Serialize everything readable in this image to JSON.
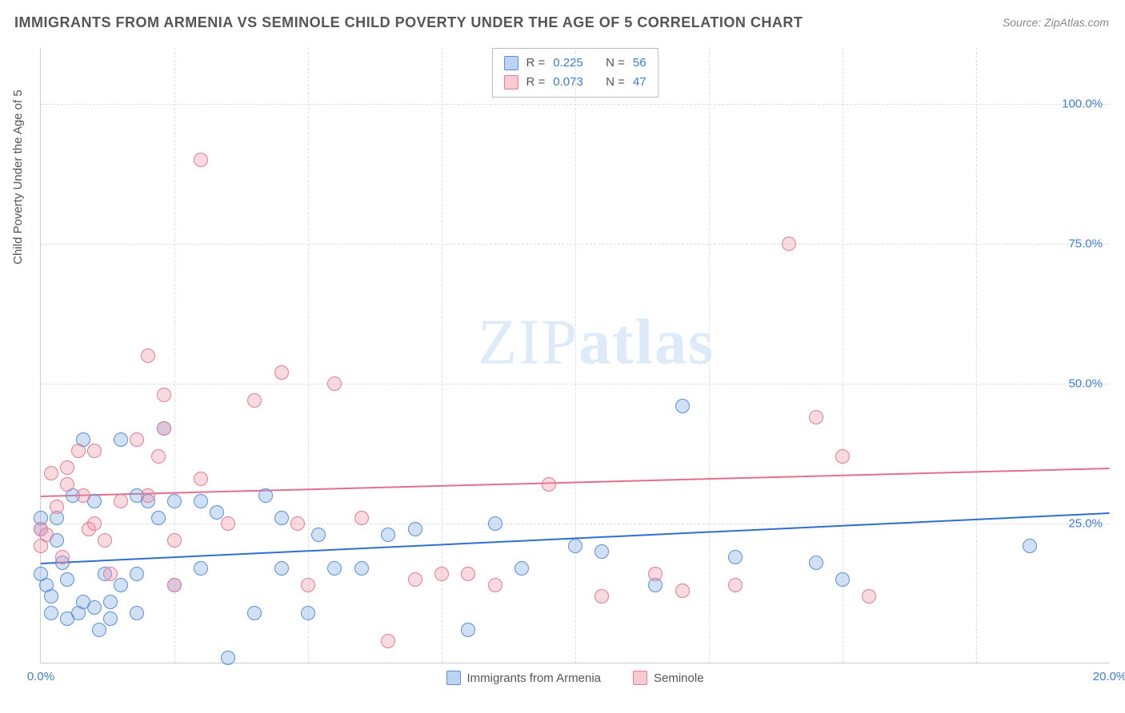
{
  "title": "IMMIGRANTS FROM ARMENIA VS SEMINOLE CHILD POVERTY UNDER THE AGE OF 5 CORRELATION CHART",
  "source": "Source: ZipAtlas.com",
  "y_axis_label": "Child Poverty Under the Age of 5",
  "watermark_thin": "ZIP",
  "watermark_bold": "atlas",
  "chart": {
    "type": "scatter",
    "xlim": [
      0,
      20
    ],
    "ylim": [
      0,
      110
    ],
    "x_ticks": [
      0,
      20
    ],
    "x_tick_labels": [
      "0.0%",
      "20.0%"
    ],
    "y_ticks": [
      25,
      50,
      75,
      100
    ],
    "y_tick_labels": [
      "25.0%",
      "50.0%",
      "75.0%",
      "100.0%"
    ],
    "x_minor_ticks": [
      2.5,
      5,
      7.5,
      10,
      12.5,
      15,
      17.5
    ],
    "background_color": "#ffffff",
    "grid_color": "#dddddd",
    "marker_radius": 9,
    "series": [
      {
        "name": "Immigrants from Armenia",
        "color_fill": "rgba(120,170,230,0.35)",
        "color_border": "#5a8fd6",
        "trend_color": "#2e6fd0",
        "R": "0.225",
        "N": "56",
        "trend": {
          "x1": 0,
          "y1": 18,
          "x2": 20,
          "y2": 27
        },
        "points": [
          [
            0.0,
            16
          ],
          [
            0.0,
            24
          ],
          [
            0.0,
            26
          ],
          [
            0.1,
            14
          ],
          [
            0.2,
            12
          ],
          [
            0.2,
            9
          ],
          [
            0.3,
            22
          ],
          [
            0.3,
            26
          ],
          [
            0.4,
            18
          ],
          [
            0.5,
            15
          ],
          [
            0.5,
            8
          ],
          [
            0.6,
            30
          ],
          [
            0.7,
            9
          ],
          [
            0.8,
            40
          ],
          [
            0.8,
            11
          ],
          [
            1.0,
            29
          ],
          [
            1.0,
            10
          ],
          [
            1.1,
            6
          ],
          [
            1.2,
            16
          ],
          [
            1.3,
            11
          ],
          [
            1.3,
            8
          ],
          [
            1.5,
            40
          ],
          [
            1.5,
            14
          ],
          [
            1.8,
            16
          ],
          [
            1.8,
            9
          ],
          [
            1.8,
            30
          ],
          [
            2.0,
            29
          ],
          [
            2.2,
            26
          ],
          [
            2.3,
            42
          ],
          [
            2.5,
            29
          ],
          [
            2.5,
            14
          ],
          [
            3.0,
            17
          ],
          [
            3.0,
            29
          ],
          [
            3.3,
            27
          ],
          [
            3.5,
            1
          ],
          [
            4.0,
            9
          ],
          [
            4.2,
            30
          ],
          [
            4.5,
            17
          ],
          [
            4.5,
            26
          ],
          [
            5.0,
            9
          ],
          [
            5.2,
            23
          ],
          [
            5.5,
            17
          ],
          [
            6.0,
            17
          ],
          [
            6.5,
            23
          ],
          [
            7.0,
            24
          ],
          [
            8.0,
            6
          ],
          [
            8.5,
            25
          ],
          [
            9.0,
            17
          ],
          [
            10.0,
            21
          ],
          [
            10.5,
            20
          ],
          [
            11.5,
            14
          ],
          [
            12.0,
            46
          ],
          [
            13.0,
            19
          ],
          [
            14.5,
            18
          ],
          [
            15.0,
            15
          ],
          [
            18.5,
            21
          ]
        ]
      },
      {
        "name": "Seminole",
        "color_fill": "rgba(240,150,170,0.35)",
        "color_border": "#e07d97",
        "trend_color": "#e56e8b",
        "R": "0.073",
        "N": "47",
        "trend": {
          "x1": 0,
          "y1": 30,
          "x2": 20,
          "y2": 35
        },
        "points": [
          [
            0.0,
            21
          ],
          [
            0.0,
            24
          ],
          [
            0.1,
            23
          ],
          [
            0.2,
            34
          ],
          [
            0.3,
            28
          ],
          [
            0.4,
            19
          ],
          [
            0.5,
            35
          ],
          [
            0.5,
            32
          ],
          [
            0.7,
            38
          ],
          [
            0.8,
            30
          ],
          [
            0.9,
            24
          ],
          [
            1.0,
            38
          ],
          [
            1.0,
            25
          ],
          [
            1.2,
            22
          ],
          [
            1.3,
            16
          ],
          [
            1.5,
            29
          ],
          [
            1.8,
            40
          ],
          [
            2.0,
            55
          ],
          [
            2.0,
            30
          ],
          [
            2.2,
            37
          ],
          [
            2.3,
            48
          ],
          [
            2.3,
            42
          ],
          [
            2.5,
            22
          ],
          [
            2.5,
            14
          ],
          [
            3.0,
            90
          ],
          [
            3.0,
            33
          ],
          [
            3.5,
            25
          ],
          [
            4.0,
            47
          ],
          [
            4.5,
            52
          ],
          [
            4.8,
            25
          ],
          [
            5.0,
            14
          ],
          [
            5.5,
            50
          ],
          [
            6.0,
            26
          ],
          [
            6.5,
            4
          ],
          [
            7.0,
            15
          ],
          [
            7.5,
            16
          ],
          [
            8.0,
            16
          ],
          [
            8.5,
            14
          ],
          [
            9.5,
            32
          ],
          [
            10.5,
            12
          ],
          [
            11.5,
            16
          ],
          [
            12.0,
            13
          ],
          [
            13.0,
            14
          ],
          [
            14.0,
            75
          ],
          [
            14.5,
            44
          ],
          [
            15.0,
            37
          ],
          [
            15.5,
            12
          ]
        ]
      }
    ]
  },
  "stats_labels": {
    "R": "R =",
    "N": "N ="
  },
  "legend": {
    "items": [
      "Immigrants from Armenia",
      "Seminole"
    ]
  }
}
